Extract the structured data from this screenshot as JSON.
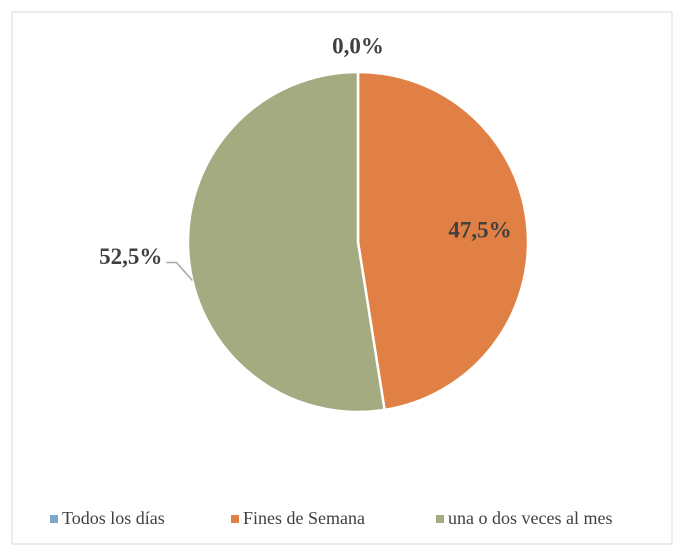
{
  "chart_data": {
    "type": "pie",
    "categories": [
      "Todos los días",
      "Fines de Semana",
      "una o dos veces al mes"
    ],
    "values": [
      0.0,
      47.5,
      52.5
    ],
    "value_labels": [
      "0,0%",
      "47,5%",
      "52,5%"
    ],
    "colors": [
      "#7fa7c9",
      "#e08045",
      "#a4ab80"
    ]
  }
}
